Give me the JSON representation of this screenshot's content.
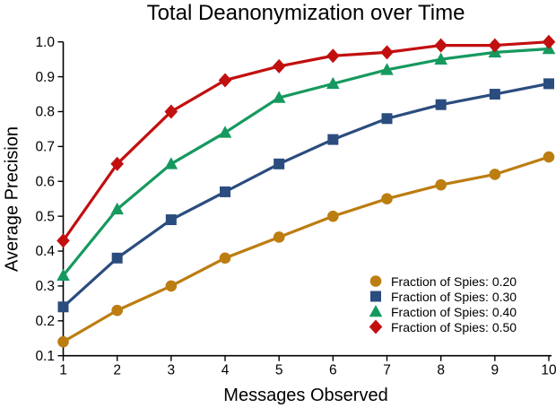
{
  "chart_data": {
    "type": "line",
    "title": "Total Deanonymization over Time",
    "xlabel": "Messages Observed",
    "ylabel": "Average Precision",
    "xlim": [
      1,
      10
    ],
    "ylim": [
      0.1,
      1.0
    ],
    "grid": false,
    "legend_position": "lower right",
    "x_ticks": [
      "1",
      "2",
      "3",
      "4",
      "5",
      "6",
      "7",
      "8",
      "9",
      "10"
    ],
    "y_ticks": [
      "0.1",
      "0.2",
      "0.3",
      "0.4",
      "0.5",
      "0.6",
      "0.7",
      "0.8",
      "0.9",
      "1.0"
    ],
    "x": [
      1,
      2,
      3,
      4,
      5,
      6,
      7,
      8,
      9,
      10
    ],
    "series": [
      {
        "label": "Fraction of Spies: 0.20",
        "marker": "circle",
        "color": "#BC7D11",
        "values": [
          0.14,
          0.23,
          0.3,
          0.38,
          0.44,
          0.5,
          0.55,
          0.59,
          0.62,
          0.67
        ]
      },
      {
        "label": "Fraction of Spies: 0.30",
        "marker": "square",
        "color": "#2B4C7E",
        "values": [
          0.24,
          0.38,
          0.49,
          0.57,
          0.65,
          0.72,
          0.78,
          0.82,
          0.85,
          0.88
        ]
      },
      {
        "label": "Fraction of Spies: 0.40",
        "marker": "triangle",
        "color": "#16995F",
        "values": [
          0.33,
          0.52,
          0.65,
          0.74,
          0.84,
          0.88,
          0.92,
          0.95,
          0.97,
          0.98
        ]
      },
      {
        "label": "Fraction of Spies: 0.50",
        "marker": "diamond",
        "color": "#C20F0F",
        "values": [
          0.43,
          0.65,
          0.8,
          0.89,
          0.93,
          0.96,
          0.97,
          0.99,
          0.99,
          1.0
        ]
      }
    ]
  }
}
